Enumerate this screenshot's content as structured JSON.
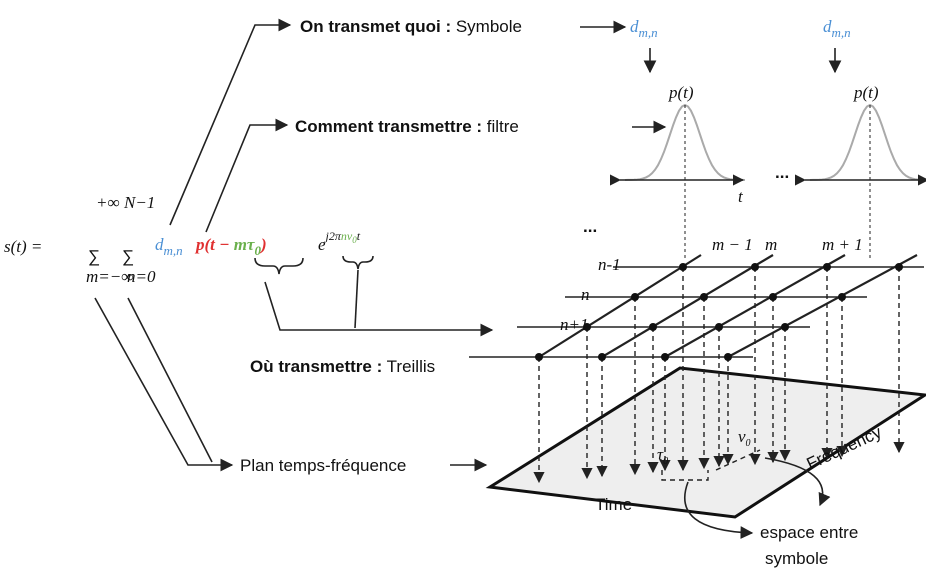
{
  "formula": {
    "lhs": "s(t) =",
    "sum_symbol": "∑",
    "sum1_upper": "+∞",
    "sum1_lower": "m=−∞",
    "sum2_upper": "N−1",
    "sum2_lower": "n=0",
    "d_base": "d",
    "d_sub": "m,n",
    "p_open": "p(t − ",
    "m_tau": "mτ",
    "tau_sub": "0",
    "p_close": ")",
    "exp_base": "e",
    "exp_a": "j2π",
    "exp_n": "nν",
    "exp_sub": "0",
    "exp_t": "t"
  },
  "what": {
    "label": "On transmet quoi :",
    "text": " Symbole"
  },
  "how": {
    "label": "Comment transmettre :",
    "text": " filtre"
  },
  "where": {
    "label": "Où transmettre :",
    "text": " Treillis"
  },
  "plane_label": "Plan temps-fréquence",
  "symbol_base": "d",
  "symbol_sub": "m,n",
  "pulse_label": "p(t)",
  "time_axis": "t",
  "ellipsis": "...",
  "columns": [
    "m − 1",
    "m",
    "m + 1"
  ],
  "rows": [
    "n-1",
    "n",
    "n+1"
  ],
  "plane_time": "Time",
  "plane_frequency": "Frequency",
  "tau": "τ",
  "tau_sub": "0",
  "nu": "ν",
  "nu_sub": "0",
  "spacing_label": [
    "espace entre",
    "symbole"
  ]
}
